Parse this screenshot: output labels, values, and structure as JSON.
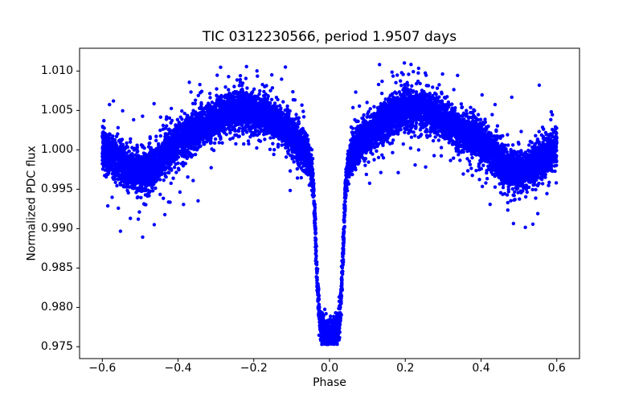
{
  "figure": {
    "background": "#ffffff",
    "text_color": "#000000",
    "spine_color": "#000000"
  },
  "chart_data": {
    "type": "scatter",
    "title": "TIC 0312230566, period 1.9507 days",
    "xlabel": "Phase",
    "ylabel": "Normalized PDC flux",
    "xlim": [
      -0.66,
      0.66
    ],
    "ylim": [
      0.9735,
      1.0129
    ],
    "xticks": [
      -0.6,
      -0.4,
      -0.2,
      0.0,
      0.2,
      0.4,
      0.6
    ],
    "xtick_labels": [
      "−0.6",
      "−0.4",
      "−0.2",
      "0.0",
      "0.2",
      "0.4",
      "0.6"
    ],
    "yticks": [
      0.975,
      0.98,
      0.985,
      0.99,
      0.995,
      1.0,
      1.005,
      1.01
    ],
    "ytick_labels": [
      "0.975",
      "0.980",
      "0.985",
      "0.990",
      "0.995",
      "1.000",
      "1.005",
      "1.010"
    ],
    "grid": false,
    "legend": null,
    "marker": {
      "shape": "circle",
      "color": "#0000ff",
      "radius_px": 2.2
    },
    "series": [
      {
        "name": "phase-folded normalized PDC flux",
        "n_points": 11500,
        "phase_range": [
          -0.6,
          0.6
        ],
        "symmetric_about_zero": true,
        "mean_curve": [
          [
            0.0,
            0.976
          ],
          [
            0.007,
            0.9761
          ],
          [
            0.013,
            0.9763
          ],
          [
            0.019,
            0.9769
          ],
          [
            0.024,
            0.9779
          ],
          [
            0.028,
            0.9796
          ],
          [
            0.0315,
            0.9822
          ],
          [
            0.035,
            0.9862
          ],
          [
            0.038,
            0.9904
          ],
          [
            0.041,
            0.9937
          ],
          [
            0.044,
            0.9959
          ],
          [
            0.048,
            0.9976
          ],
          [
            0.053,
            0.9987
          ],
          [
            0.06,
            0.9996
          ],
          [
            0.07,
            1.0003
          ],
          [
            0.085,
            1.0011
          ],
          [
            0.105,
            1.0021
          ],
          [
            0.13,
            1.0031
          ],
          [
            0.16,
            1.0042
          ],
          [
            0.19,
            1.0047
          ],
          [
            0.23,
            1.0051
          ],
          [
            0.27,
            1.0048
          ],
          [
            0.3,
            1.0039
          ],
          [
            0.34,
            1.0027
          ],
          [
            0.38,
            1.0016
          ],
          [
            0.41,
            1.0006
          ],
          [
            0.44,
            0.999
          ],
          [
            0.47,
            0.9975
          ],
          [
            0.49,
            0.9971
          ],
          [
            0.515,
            0.9973
          ],
          [
            0.545,
            0.9981
          ],
          [
            0.575,
            0.9993
          ],
          [
            0.6,
            1.0004
          ]
        ],
        "eclipse": {
          "center_phase": 0.0,
          "minimum_flux": 0.976,
          "ingress_egress_phase": 0.05
        },
        "noise": {
          "sigma_core": 0.00115,
          "sigma_mid": 0.0022,
          "frac_mid": 0.08,
          "sigma_tail": 0.0042,
          "frac_tail": 0.02,
          "flux_floor": 0.9753,
          "flux_ceil": 1.0112
        }
      }
    ]
  }
}
